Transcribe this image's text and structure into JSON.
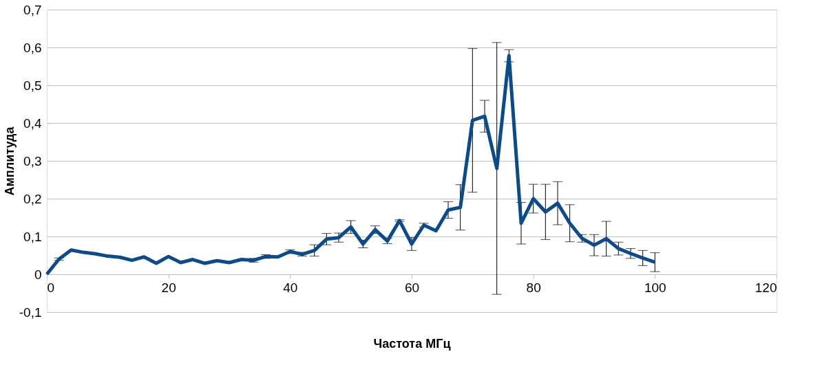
{
  "chart_data": {
    "type": "line",
    "xlabel": "Частота МГц",
    "ylabel": "Амплитуда",
    "x": [
      0,
      2,
      4,
      6,
      8,
      10,
      12,
      14,
      16,
      18,
      20,
      22,
      24,
      26,
      28,
      30,
      32,
      34,
      36,
      38,
      40,
      42,
      44,
      46,
      48,
      50,
      52,
      54,
      56,
      58,
      60,
      62,
      64,
      66,
      68,
      70,
      72,
      74,
      76,
      78,
      80,
      82,
      84,
      86,
      88,
      90,
      92,
      94,
      96,
      98,
      100
    ],
    "series": [
      {
        "color": "#0b4a8b",
        "values": [
          0,
          0.04,
          0.064,
          0.058,
          0.054,
          0.048,
          0.045,
          0.037,
          0.046,
          0.029,
          0.047,
          0.031,
          0.039,
          0.029,
          0.036,
          0.031,
          0.039,
          0.037,
          0.047,
          0.046,
          0.06,
          0.053,
          0.063,
          0.093,
          0.097,
          0.125,
          0.08,
          0.118,
          0.088,
          0.142,
          0.08,
          0.13,
          0.115,
          0.17,
          0.177,
          0.407,
          0.418,
          0.28,
          0.578,
          0.135,
          0.2,
          0.165,
          0.188,
          0.135,
          0.095,
          0.077,
          0.094,
          0.068,
          0.055,
          0.043,
          0.032
        ],
        "errors": [
          null,
          0.003,
          null,
          null,
          null,
          null,
          null,
          null,
          null,
          null,
          null,
          null,
          null,
          null,
          null,
          null,
          null,
          0.005,
          0.005,
          null,
          0.005,
          0.005,
          0.015,
          0.015,
          0.012,
          0.017,
          0.01,
          0.01,
          0.007,
          0.002,
          0.017,
          0.005,
          null,
          0.022,
          0.06,
          0.19,
          0.042,
          0.333,
          0.016,
          0.055,
          0.038,
          0.073,
          0.057,
          0.049,
          0.01,
          0.028,
          0.046,
          0.017,
          0.013,
          0.02,
          0.025
        ]
      }
    ],
    "xlim": [
      0,
      120
    ],
    "xticks": [
      0,
      20,
      40,
      60,
      80,
      100,
      120
    ],
    "ylim": [
      -0.1,
      0.7
    ],
    "yticks": [
      {
        "value": -0.1,
        "label": "-0,1"
      },
      {
        "value": 0,
        "label": "0"
      },
      {
        "value": 0.1,
        "label": "0,1"
      },
      {
        "value": 0.2,
        "label": "0,2"
      },
      {
        "value": 0.3,
        "label": "0,3"
      },
      {
        "value": 0.4,
        "label": "0,4"
      },
      {
        "value": 0.5,
        "label": "0,5"
      },
      {
        "value": 0.6,
        "label": "0,6"
      },
      {
        "value": 0.7,
        "label": "0,7"
      }
    ],
    "grid": "y",
    "marker": "none",
    "line_style": "solid"
  }
}
